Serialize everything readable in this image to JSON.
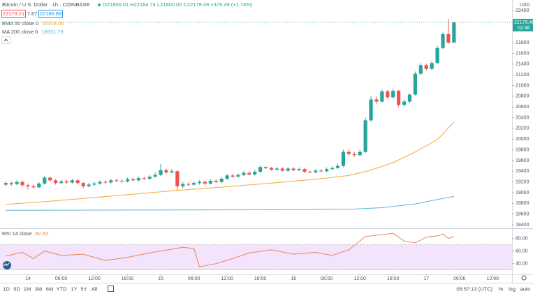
{
  "header": {
    "symbol": "Bitcoin / U.S. Dollar · 1h · COINBASE",
    "ohlc": "O21800.01 H22184.74 L21800.00 C22179.49 +379.49 (+1.74%)",
    "sell": "22179.21",
    "spread": "7.67",
    "buy": "22186.88"
  },
  "chart_data": [
    {
      "type": "candlestick",
      "currency": "USD",
      "countdown": "02:46",
      "up_color": "#26a69a",
      "down_color": "#ef5350",
      "grid": false,
      "x": [
        -4,
        -3,
        -2,
        -1,
        0,
        1,
        2,
        3,
        4,
        5,
        6,
        7,
        8,
        9,
        10,
        11,
        12,
        13,
        14,
        15,
        16,
        17,
        18,
        19,
        20,
        21,
        22,
        23,
        24,
        25,
        26,
        27,
        28,
        29,
        30,
        31,
        32,
        33,
        34,
        35,
        36,
        37,
        38,
        39,
        40,
        41,
        42,
        43,
        44,
        45,
        46,
        47,
        48,
        49,
        50,
        51,
        52,
        53,
        54,
        55,
        56,
        57,
        58,
        59,
        60,
        61,
        62,
        63,
        64,
        65,
        66,
        67,
        68,
        69,
        70,
        71,
        72,
        73,
        74,
        75,
        76,
        77
      ],
      "open": [
        19150,
        19180,
        19160,
        19200,
        19140,
        19120,
        19100,
        19170,
        19280,
        19230,
        19180,
        19210,
        19190,
        19230,
        19180,
        19120,
        19150,
        19170,
        19200,
        19190,
        19230,
        19220,
        19210,
        19250,
        19230,
        19270,
        19260,
        19300,
        19330,
        19420,
        19380,
        19400,
        19120,
        19160,
        19150,
        19180,
        19200,
        19170,
        19220,
        19200,
        19260,
        19320,
        19300,
        19330,
        19370,
        19340,
        19390,
        19480,
        19460,
        19430,
        19450,
        19410,
        19450,
        19420,
        19440,
        19390,
        19380,
        19410,
        19400,
        19440,
        19460,
        19500,
        19760,
        19720,
        19700,
        19760,
        20350,
        20740,
        20700,
        20890,
        20780,
        20900,
        20640,
        20700,
        20830,
        21220,
        21380,
        21310,
        21420,
        21700,
        21960,
        21800.01
      ],
      "high": [
        19210,
        19210,
        19230,
        19230,
        19170,
        19150,
        19200,
        19310,
        19300,
        19250,
        19240,
        19240,
        19260,
        19250,
        19200,
        19180,
        19200,
        19230,
        19230,
        19260,
        19260,
        19250,
        19280,
        19280,
        19300,
        19300,
        19330,
        19370,
        19540,
        19450,
        19440,
        19420,
        19200,
        19190,
        19210,
        19230,
        19230,
        19250,
        19250,
        19290,
        19350,
        19350,
        19360,
        19400,
        19400,
        19420,
        19510,
        19500,
        19480,
        19480,
        19470,
        19480,
        19470,
        19470,
        19460,
        19410,
        19440,
        19440,
        19470,
        19490,
        19540,
        19800,
        19800,
        19760,
        19800,
        20400,
        20800,
        20790,
        20920,
        20920,
        20940,
        20920,
        20740,
        20860,
        21260,
        21420,
        21410,
        21460,
        21740,
        21990,
        22240,
        22184.74
      ],
      "low": [
        19120,
        19130,
        19140,
        19110,
        19060,
        19070,
        19080,
        19150,
        19200,
        19150,
        19160,
        19170,
        19170,
        19150,
        19090,
        19100,
        19130,
        19150,
        19170,
        19170,
        19200,
        19190,
        19190,
        19210,
        19210,
        19240,
        19240,
        19280,
        19310,
        19350,
        19360,
        19040,
        19090,
        19120,
        19130,
        19150,
        19140,
        19150,
        19180,
        19180,
        19240,
        19280,
        19280,
        19310,
        19320,
        19320,
        19370,
        19440,
        19410,
        19410,
        19390,
        19390,
        19400,
        19400,
        19370,
        19360,
        19360,
        19380,
        19380,
        19420,
        19440,
        19480,
        19690,
        19670,
        19680,
        19740,
        20330,
        20660,
        20680,
        20750,
        20760,
        20600,
        20610,
        20680,
        20810,
        21190,
        21280,
        21290,
        21400,
        21680,
        21780,
        21800
      ],
      "close": [
        19180,
        19160,
        19200,
        19140,
        19120,
        19100,
        19170,
        19280,
        19230,
        19180,
        19210,
        19190,
        19230,
        19180,
        19120,
        19150,
        19170,
        19200,
        19190,
        19230,
        19220,
        19210,
        19250,
        19230,
        19270,
        19260,
        19300,
        19330,
        19420,
        19380,
        19400,
        19120,
        19160,
        19150,
        19180,
        19200,
        19170,
        19220,
        19200,
        19260,
        19320,
        19300,
        19330,
        19370,
        19340,
        19390,
        19480,
        19460,
        19430,
        19450,
        19410,
        19450,
        19420,
        19440,
        19390,
        19380,
        19410,
        19400,
        19440,
        19460,
        19500,
        19760,
        19720,
        19700,
        19760,
        20350,
        20740,
        20700,
        20890,
        20780,
        20900,
        20640,
        20700,
        20830,
        21220,
        21380,
        21310,
        21420,
        21700,
        21960,
        21800,
        22179.49
      ],
      "lines": [
        {
          "name": "EMA 50 close 0",
          "color": "#f6a53a",
          "x": [
            -4,
            4,
            12,
            20,
            28,
            36,
            44,
            52,
            58,
            62,
            66,
            70,
            74,
            77
          ],
          "values": [
            18780,
            18840,
            18910,
            18980,
            19050,
            19110,
            19180,
            19250,
            19320,
            19420,
            19560,
            19760,
            19990,
            20318.06
          ]
        },
        {
          "name": "MA 200 close 0",
          "color": "#5fb3d8",
          "x": [
            -4,
            20,
            44,
            58,
            64,
            70,
            77
          ],
          "values": [
            18670,
            18675,
            18680,
            18690,
            18720,
            18790,
            18931.79
          ]
        }
      ],
      "xlim": [
        -5.05,
        87.5
      ],
      "xticks": [
        {
          "value": 0,
          "label": "14"
        },
        {
          "value": 6,
          "label": "06:00"
        },
        {
          "value": 12,
          "label": "12:00"
        },
        {
          "value": 18,
          "label": "18:00"
        },
        {
          "value": 24,
          "label": "15"
        },
        {
          "value": 30,
          "label": "06:00"
        },
        {
          "value": 36,
          "label": "12:00"
        },
        {
          "value": 42,
          "label": "18:00"
        },
        {
          "value": 48,
          "label": "16"
        },
        {
          "value": 54,
          "label": "06:00"
        },
        {
          "value": 60,
          "label": "12:00"
        },
        {
          "value": 66,
          "label": "18:00"
        },
        {
          "value": 72,
          "label": "17"
        },
        {
          "value": 78,
          "label": "06:00"
        },
        {
          "value": 84,
          "label": "12:00"
        }
      ],
      "ylim": [
        18335,
        22596
      ],
      "yticks": [
        22400,
        21800,
        21600,
        21400,
        21200,
        21000,
        20800,
        20600,
        20400,
        20200,
        20000,
        19800,
        19600,
        19400,
        19200,
        19000,
        18800,
        18600,
        18400
      ]
    },
    {
      "type": "line",
      "title": "RSI 14 close",
      "color": "#e8875a",
      "band": [
        30,
        70
      ],
      "band_color": "#f3e3fb",
      "x": [
        -4,
        -1,
        1,
        3,
        6,
        10,
        14,
        18,
        22,
        26,
        28,
        30,
        31,
        34,
        37,
        40,
        44,
        48,
        52,
        55,
        58,
        61,
        64,
        66,
        68,
        70,
        72,
        74,
        75,
        76,
        77
      ],
      "values": [
        52,
        58,
        48,
        60,
        53,
        55,
        45,
        50,
        57,
        63,
        66,
        64,
        35,
        40,
        48,
        57,
        62,
        55,
        58,
        53,
        62,
        83,
        86,
        88,
        76,
        73,
        82,
        84,
        87,
        80,
        82.82
      ],
      "xlim": [
        -5.05,
        87.5
      ],
      "ylim": [
        23,
        95
      ],
      "yticks": [
        {
          "value": 80,
          "label": "80.00"
        },
        {
          "value": 60,
          "label": "60.00"
        },
        {
          "value": 40,
          "label": "40.00"
        }
      ]
    }
  ],
  "toolbar": {
    "ranges": [
      "1D",
      "5D",
      "1M",
      "3M",
      "6M",
      "YTD",
      "1Y",
      "5Y",
      "All"
    ],
    "clock": "05:57:13 (UTC)",
    "options": [
      "%",
      "log",
      "auto"
    ]
  }
}
